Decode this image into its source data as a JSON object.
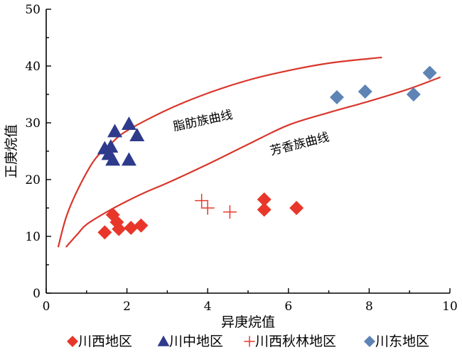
{
  "chart_data": {
    "type": "scatter",
    "xlabel": "异庚烷值",
    "ylabel": "正庚烷值",
    "xlim": [
      0,
      10
    ],
    "ylim": [
      0,
      50
    ],
    "x_ticks": [
      0,
      2,
      4,
      6,
      8,
      10
    ],
    "y_ticks": [
      0,
      10,
      20,
      30,
      40,
      50
    ],
    "grid": false,
    "legend_position": "bottom",
    "colors": {
      "red": "#e8372a",
      "navy": "#2e3a8c",
      "steel": "#5e83b5",
      "curve": "#d9362b"
    },
    "series": [
      {
        "name": "川西地区",
        "marker": "diamond",
        "color": "#e8372a",
        "points": [
          [
            1.45,
            10.7
          ],
          [
            1.65,
            13.8
          ],
          [
            1.75,
            12.5
          ],
          [
            1.8,
            11.3
          ],
          [
            2.1,
            11.5
          ],
          [
            2.35,
            11.9
          ],
          [
            5.4,
            16.5
          ],
          [
            5.4,
            14.7
          ],
          [
            6.2,
            15.0
          ]
        ]
      },
      {
        "name": "川中地区",
        "marker": "triangle",
        "color": "#2e3a8c",
        "points": [
          [
            1.45,
            25.5
          ],
          [
            1.55,
            24.5
          ],
          [
            1.6,
            25.8
          ],
          [
            1.65,
            23.5
          ],
          [
            1.7,
            28.5
          ],
          [
            2.05,
            29.8
          ],
          [
            2.05,
            23.5
          ],
          [
            2.25,
            27.8
          ]
        ]
      },
      {
        "name": "川西秋林地区",
        "marker": "plus",
        "color": "#e8372a",
        "points": [
          [
            3.85,
            16.3
          ],
          [
            4.0,
            15.0
          ],
          [
            4.55,
            14.3
          ]
        ]
      },
      {
        "name": "川东地区",
        "marker": "diamond",
        "color": "#5e83b5",
        "points": [
          [
            7.2,
            34.5
          ],
          [
            7.9,
            35.5
          ],
          [
            9.1,
            35.0
          ],
          [
            9.5,
            38.8
          ]
        ]
      }
    ],
    "curves": [
      {
        "label": "脂肪族曲线",
        "label_at": [
          3.9,
          29.7
        ],
        "label_rotate": -12,
        "color": "#d9362b",
        "points": [
          [
            0.3,
            8.2
          ],
          [
            0.5,
            13.5
          ],
          [
            0.8,
            18.5
          ],
          [
            1.2,
            23.5
          ],
          [
            1.6,
            26.3
          ],
          [
            2.0,
            28.6
          ],
          [
            3.0,
            32.3
          ],
          [
            4.0,
            35.2
          ],
          [
            5.0,
            37.5
          ],
          [
            6.0,
            39.2
          ],
          [
            7.0,
            40.5
          ],
          [
            8.0,
            41.3
          ],
          [
            8.3,
            41.5
          ]
        ]
      },
      {
        "label": "芳香族曲线",
        "label_at": [
          6.3,
          25.6
        ],
        "label_rotate": -14,
        "color": "#d9362b",
        "points": [
          [
            0.5,
            8.2
          ],
          [
            0.8,
            10.6
          ],
          [
            1.0,
            12.1
          ],
          [
            1.5,
            14.3
          ],
          [
            2.0,
            16.2
          ],
          [
            2.5,
            17.9
          ],
          [
            3.0,
            19.4
          ],
          [
            4.0,
            22.7
          ],
          [
            5.0,
            26.2
          ],
          [
            6.0,
            29.6
          ],
          [
            7.0,
            31.8
          ],
          [
            8.0,
            33.8
          ],
          [
            9.0,
            36.0
          ],
          [
            9.75,
            38.0
          ]
        ]
      }
    ]
  }
}
